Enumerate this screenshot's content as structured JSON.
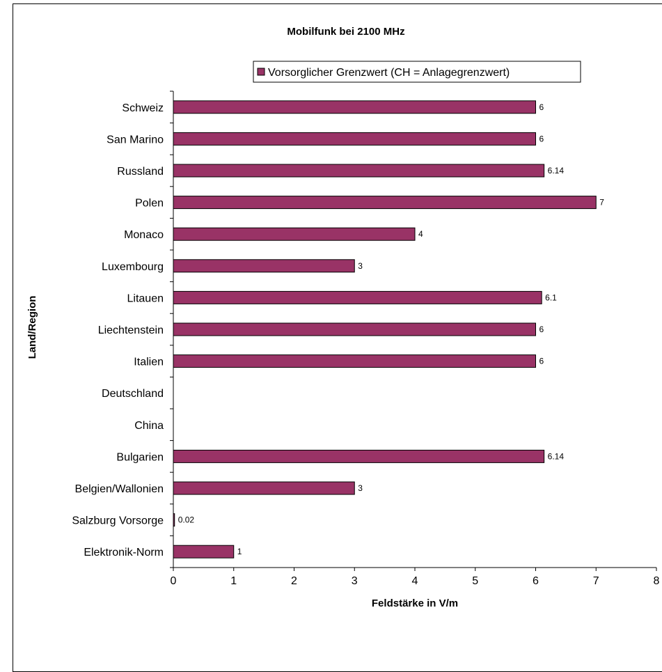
{
  "chart_data": {
    "type": "bar",
    "orientation": "horizontal",
    "title": "Mobilfunk bei 2100 MHz",
    "xlabel": "Feldstärke in V/m",
    "ylabel": "Land/Region",
    "xlim": [
      0,
      8
    ],
    "x_ticks": [
      "0",
      "1",
      "2",
      "3",
      "4",
      "5",
      "6",
      "7",
      "8"
    ],
    "grid": false,
    "legend_position": "top-right",
    "categories": [
      "Schweiz",
      "San Marino",
      "Russland",
      "Polen",
      "Monaco",
      "Luxembourg",
      "Litauen",
      "Liechtenstein",
      "Italien",
      "Deutschland",
      "China",
      "Bulgarien",
      "Belgien/Wallonien",
      "Salzburg Vorsorge",
      "Elektronik-Norm"
    ],
    "series": [
      {
        "name": "Vorsorglicher Grenzwert (CH = Anlagegrenzwert)",
        "color": "#993366",
        "values": [
          6,
          6,
          6.14,
          7,
          4,
          3,
          6.1,
          6,
          6,
          null,
          null,
          6.14,
          3,
          0.02,
          1
        ],
        "labels": [
          "6",
          "6",
          "6.14",
          "7",
          "4",
          "3",
          "6.1",
          "6",
          "6",
          "",
          "",
          "6.14",
          "3",
          "0.02",
          "1"
        ]
      }
    ]
  }
}
